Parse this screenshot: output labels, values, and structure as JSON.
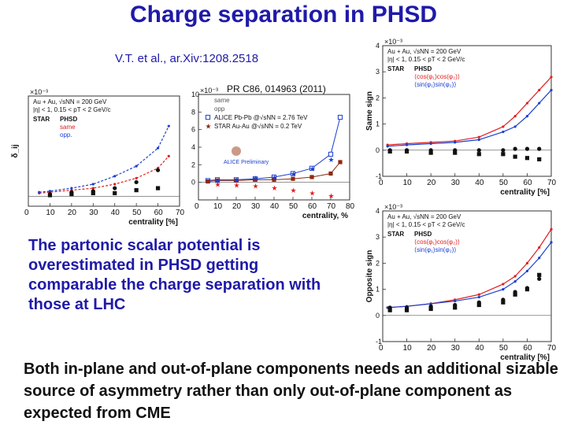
{
  "slide": {
    "title": "Charge separation in PHSD",
    "citation_1": "V.T. et al., ar.Xiv:1208.2518",
    "citation_2": "PR C86, 014963 (2011)",
    "note": "The partonic scalar potential is overestimated in PHSD getting comparable the charge separation with those at LHC",
    "bottom_text": "Both in-plane and out-of-plane components needs an additional sizable source of asymmetry rather than only out-of-plane  component as expected from CME"
  },
  "colors": {
    "title": "#1f1aa8",
    "red": "#e02020",
    "blue": "#1a3fd0",
    "black": "#111111"
  },
  "chart_data": [
    {
      "id": "left-star",
      "type": "scatter",
      "title": "",
      "scale_label": "×10⁻³",
      "ylabel": "δ_ij",
      "xlabel": "centrality [%]",
      "xlim": [
        0,
        70
      ],
      "xticks": [
        0,
        10,
        20,
        30,
        40,
        50,
        60,
        70
      ],
      "legend": [
        "Au + Au, √sNN = 200 GeV",
        "|η| < 1, 0.15 < pT < 2 GeV/c",
        "STAR",
        "PHSD",
        "same",
        "opp."
      ],
      "series": [
        {
          "name": "PHSD same",
          "color": "red",
          "style": "dashed",
          "x": [
            5,
            10,
            20,
            30,
            40,
            50,
            60,
            65
          ],
          "y": [
            0.3,
            0.4,
            0.6,
            0.8,
            1.2,
            1.8,
            2.8,
            4.0
          ]
        },
        {
          "name": "PHSD opp.",
          "color": "blue",
          "style": "dashed",
          "x": [
            5,
            10,
            20,
            30,
            40,
            50,
            60,
            65
          ],
          "y": [
            0.4,
            0.5,
            0.8,
            1.2,
            2.0,
            3.0,
            4.8,
            7.0
          ]
        },
        {
          "name": "STAR same",
          "color": "black",
          "marker": "circle",
          "x": [
            10,
            20,
            30,
            40,
            50,
            60
          ],
          "y": [
            0.2,
            0.4,
            0.5,
            0.8,
            1.4,
            2.6
          ]
        },
        {
          "name": "STAR opp.",
          "color": "black",
          "marker": "square",
          "x": [
            10,
            20,
            30,
            40,
            50,
            60
          ],
          "y": [
            0.1,
            0.2,
            0.3,
            0.3,
            0.6,
            0.8
          ]
        }
      ]
    },
    {
      "id": "alice-star",
      "type": "scatter",
      "scale_label": "×10⁻³",
      "xlabel": "centrality, %",
      "xlim": [
        0,
        80
      ],
      "ylim": [
        -2,
        10
      ],
      "xticks": [
        0,
        10,
        20,
        30,
        40,
        50,
        60,
        70,
        80
      ],
      "yticks": [
        10,
        8,
        6,
        4,
        2,
        0
      ],
      "legend": [
        "same",
        "opp",
        "ALICE Pb-Pb @√sNN = 2.76 TeV",
        "STAR Au-Au @√sNN = 0.2 TeV"
      ],
      "preliminary_label": "ALICE Preliminary",
      "series": [
        {
          "name": "ALICE same",
          "color": "blue",
          "marker": "square",
          "x": [
            5,
            10,
            20,
            30,
            40,
            50,
            60,
            70,
            75
          ],
          "y": [
            0.2,
            0.3,
            0.3,
            0.4,
            0.6,
            1.0,
            1.6,
            3.2,
            7.4
          ]
        },
        {
          "name": "ALICE opp",
          "color": "brown",
          "marker": "square",
          "x": [
            5,
            10,
            20,
            30,
            40,
            50,
            60,
            70,
            75
          ],
          "y": [
            0.1,
            0.2,
            0.2,
            0.3,
            0.3,
            0.4,
            0.6,
            1.0,
            2.3
          ]
        },
        {
          "name": "STAR same",
          "color": "blue",
          "marker": "star",
          "x": [
            10,
            20,
            30,
            40,
            50,
            60,
            70
          ],
          "y": [
            0.2,
            0.3,
            0.5,
            0.6,
            1.0,
            1.6,
            2.6
          ]
        },
        {
          "name": "STAR opp",
          "color": "red",
          "marker": "star",
          "x": [
            10,
            20,
            30,
            40,
            50,
            60,
            70
          ],
          "y": [
            -0.2,
            -0.3,
            -0.4,
            -0.6,
            -0.9,
            -1.2,
            -1.5
          ]
        }
      ]
    },
    {
      "id": "right-same",
      "type": "scatter",
      "scale_label": "×10⁻³",
      "ylabel": "Same sign",
      "xlabel": "centrality [%]",
      "xlim": [
        0,
        70
      ],
      "ylim": [
        -1,
        4
      ],
      "xticks": [
        0,
        10,
        20,
        30,
        40,
        50,
        60,
        70
      ],
      "yticks": [
        4,
        3,
        2,
        1,
        0,
        -1
      ],
      "legend": [
        "Au + Au, √sNN = 200 GeV",
        "|η| < 1, 0.15 < pT < 2 GeV/c",
        "STAR",
        "PHSD",
        "⟨cos(φ₁)cos(φ₂)⟩",
        "⟨sin(φ₁)sin(φ₂)⟩"
      ],
      "series": [
        {
          "name": "PHSD cos cos",
          "color": "red",
          "x": [
            2,
            10,
            20,
            30,
            40,
            50,
            55,
            60,
            65,
            70
          ],
          "y": [
            0.2,
            0.25,
            0.3,
            0.35,
            0.5,
            0.9,
            1.3,
            1.8,
            2.3,
            2.8
          ]
        },
        {
          "name": "PHSD sin sin",
          "color": "blue",
          "x": [
            2,
            10,
            20,
            30,
            40,
            50,
            55,
            60,
            65,
            70
          ],
          "y": [
            0.15,
            0.2,
            0.25,
            0.3,
            0.4,
            0.7,
            0.9,
            1.3,
            1.8,
            2.3
          ]
        },
        {
          "name": "STAR cos cos",
          "color": "black",
          "marker": "circle",
          "x": [
            3,
            10,
            20,
            30,
            40,
            50,
            55,
            60,
            65
          ],
          "y": [
            0.0,
            0.0,
            0.0,
            0.0,
            0.0,
            0.0,
            0.05,
            0.05,
            0.05
          ]
        },
        {
          "name": "STAR sin sin",
          "color": "black",
          "marker": "square",
          "x": [
            3,
            10,
            20,
            30,
            40,
            50,
            55,
            60,
            65
          ],
          "y": [
            -0.05,
            -0.05,
            -0.1,
            -0.1,
            -0.15,
            -0.15,
            -0.25,
            -0.3,
            -0.35
          ]
        }
      ]
    },
    {
      "id": "right-opposite",
      "type": "scatter",
      "scale_label": "×10⁻³",
      "ylabel": "Opposite sign",
      "xlabel": "centrality [%]",
      "xlim": [
        0,
        70
      ],
      "ylim": [
        -1,
        4
      ],
      "xticks": [
        0,
        10,
        20,
        30,
        40,
        50,
        60,
        70
      ],
      "yticks": [
        4,
        3,
        2,
        1,
        0,
        -1
      ],
      "legend": [
        "Au + Au, √sNN = 200 GeV",
        "|η| < 1, 0.15 < pT < 2 GeV/c",
        "STAR",
        "PHSD",
        "⟨cos(φ₁)cos(φ₂)⟩",
        "⟨sin(φ₁)sin(φ₂)⟩"
      ],
      "series": [
        {
          "name": "PHSD cos cos",
          "color": "red",
          "x": [
            2,
            10,
            20,
            30,
            40,
            50,
            55,
            60,
            65,
            70
          ],
          "y": [
            0.3,
            0.35,
            0.45,
            0.6,
            0.8,
            1.2,
            1.5,
            2.0,
            2.6,
            3.3
          ]
        },
        {
          "name": "PHSD sin sin",
          "color": "blue",
          "x": [
            2,
            10,
            20,
            30,
            40,
            50,
            55,
            60,
            65,
            70
          ],
          "y": [
            0.3,
            0.35,
            0.45,
            0.55,
            0.7,
            1.0,
            1.3,
            1.7,
            2.2,
            2.8
          ]
        },
        {
          "name": "STAR cos cos",
          "color": "black",
          "marker": "circle",
          "x": [
            3,
            10,
            20,
            30,
            40,
            50,
            55,
            60,
            65
          ],
          "y": [
            0.3,
            0.3,
            0.35,
            0.4,
            0.5,
            0.6,
            0.9,
            1.05,
            1.4
          ]
        },
        {
          "name": "STAR sin sin",
          "color": "black",
          "marker": "square",
          "x": [
            3,
            10,
            20,
            30,
            40,
            50,
            55,
            60,
            65
          ],
          "y": [
            0.2,
            0.2,
            0.25,
            0.3,
            0.4,
            0.5,
            0.8,
            1.0,
            1.55
          ]
        }
      ]
    }
  ]
}
